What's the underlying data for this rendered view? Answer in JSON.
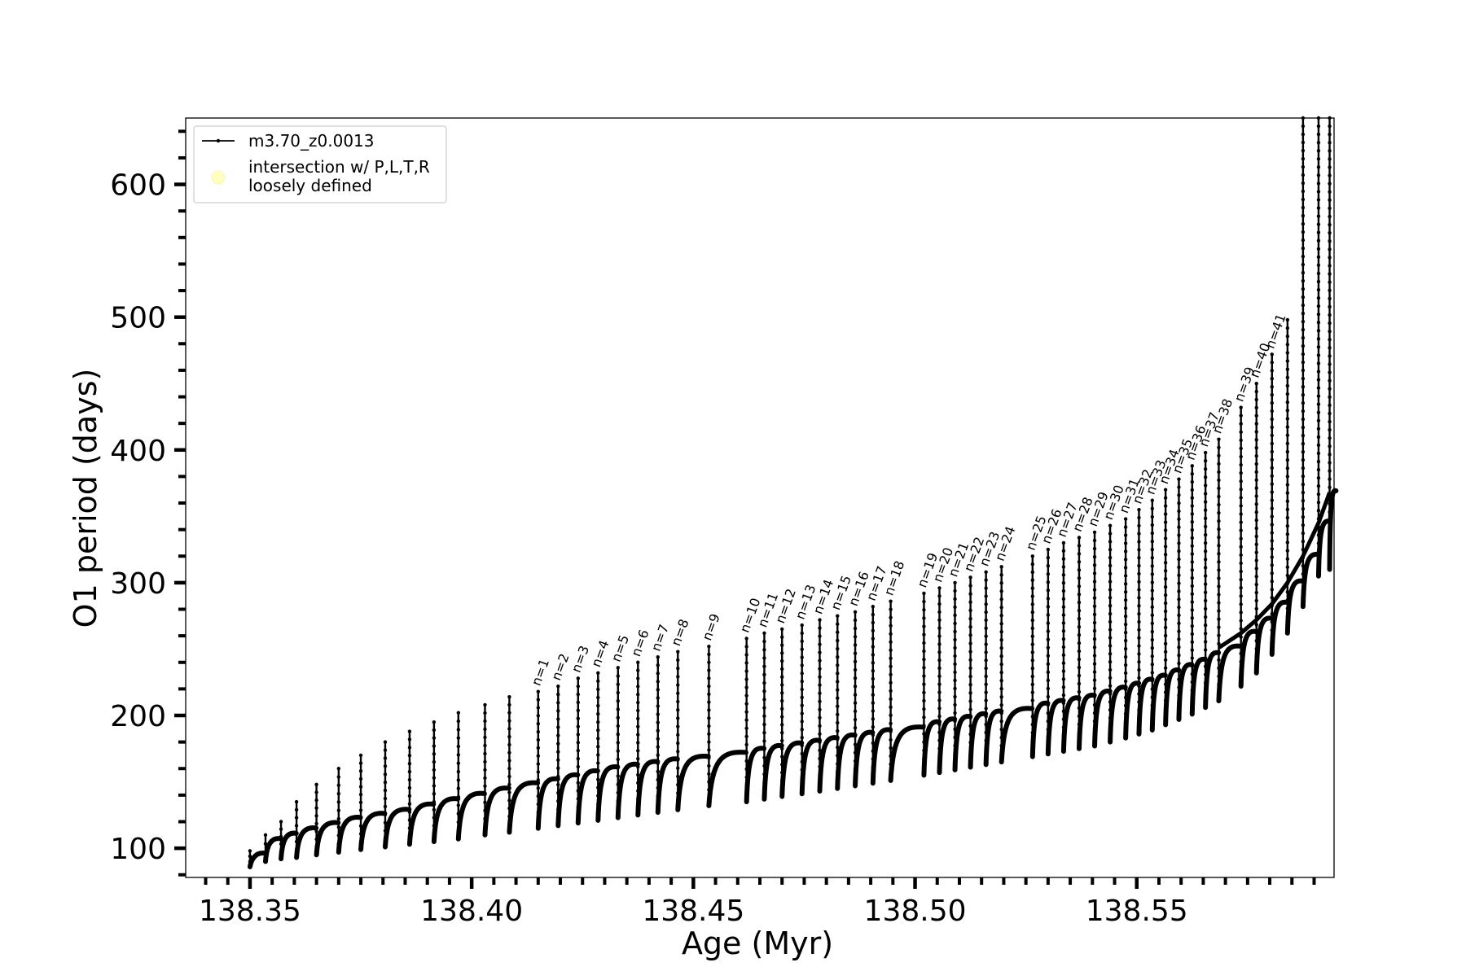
{
  "chart_data": {
    "type": "line",
    "title": "",
    "xlabel": "Age (Myr)",
    "ylabel": "O1 period (days)",
    "xlim": [
      138.3355,
      138.5945
    ],
    "ylim": [
      78,
      650
    ],
    "x_ticks": [
      138.35,
      138.4,
      138.45,
      138.5,
      138.55
    ],
    "x_tick_labels": [
      "138.35",
      "138.40",
      "138.45",
      "138.50",
      "138.55"
    ],
    "y_ticks": [
      100,
      200,
      300,
      400,
      500,
      600
    ],
    "y_tick_labels": [
      "100",
      "200",
      "300",
      "400",
      "500",
      "600"
    ],
    "x_minor_step": 0.005,
    "y_minor_step": 20,
    "grid": false,
    "legend": {
      "placement": "top-left",
      "entries": [
        {
          "label": "m3.70_z0.0013",
          "marker": "line-with-dots",
          "color": "#000000"
        },
        {
          "label": "intersection w/ P,L,T,R\nloosely defined",
          "marker": "circle",
          "color": "#ffffc0"
        }
      ]
    },
    "series": [
      {
        "name": "m3.70_z0.0013",
        "color": "#000000",
        "description": "loops (blue loops / pulses), each with a rise in base period and a sharp spike",
        "loops": [
          {
            "x": 138.35,
            "base": 95,
            "min": 86,
            "peak": 98
          },
          {
            "x": 138.3535,
            "base": 106,
            "min": 90,
            "peak": 110
          },
          {
            "x": 138.357,
            "base": 110,
            "min": 92,
            "peak": 120
          },
          {
            "x": 138.3605,
            "base": 114,
            "min": 93,
            "peak": 135
          },
          {
            "x": 138.365,
            "base": 118,
            "min": 95,
            "peak": 148
          },
          {
            "x": 138.37,
            "base": 122,
            "min": 97,
            "peak": 160
          },
          {
            "x": 138.375,
            "base": 125,
            "min": 99,
            "peak": 170
          },
          {
            "x": 138.3805,
            "base": 128,
            "min": 101,
            "peak": 180
          },
          {
            "x": 138.386,
            "base": 132,
            "min": 103,
            "peak": 188
          },
          {
            "x": 138.3915,
            "base": 136,
            "min": 105,
            "peak": 195
          },
          {
            "x": 138.397,
            "base": 140,
            "min": 107,
            "peak": 202
          },
          {
            "x": 138.403,
            "base": 144,
            "min": 110,
            "peak": 208
          },
          {
            "x": 138.4085,
            "base": 148,
            "min": 112,
            "peak": 214
          },
          {
            "x": 138.415,
            "base": 151,
            "min": 115,
            "peak": 218,
            "label": "n=1"
          },
          {
            "x": 138.4195,
            "base": 154,
            "min": 117,
            "peak": 222,
            "label": "n=2"
          },
          {
            "x": 138.424,
            "base": 157,
            "min": 119,
            "peak": 228,
            "label": "n=3"
          },
          {
            "x": 138.4285,
            "base": 160,
            "min": 121,
            "peak": 232,
            "label": "n=4"
          },
          {
            "x": 138.433,
            "base": 162,
            "min": 123,
            "peak": 236,
            "label": "n=5"
          },
          {
            "x": 138.4375,
            "base": 164,
            "min": 125,
            "peak": 240,
            "label": "n=6"
          },
          {
            "x": 138.442,
            "base": 166,
            "min": 127,
            "peak": 244,
            "label": "n=7"
          },
          {
            "x": 138.4465,
            "base": 168,
            "min": 129,
            "peak": 248,
            "label": "n=8"
          },
          {
            "x": 138.4535,
            "base": 171,
            "min": 132,
            "peak": 252,
            "label": "n=9"
          },
          {
            "x": 138.462,
            "base": 174,
            "min": 135,
            "peak": 258,
            "label": "n=10"
          },
          {
            "x": 138.466,
            "base": 176,
            "min": 137,
            "peak": 262,
            "label": "n=11"
          },
          {
            "x": 138.47,
            "base": 178,
            "min": 139,
            "peak": 265,
            "label": "n=12"
          },
          {
            "x": 138.4745,
            "base": 180,
            "min": 141,
            "peak": 268,
            "label": "n=13"
          },
          {
            "x": 138.4785,
            "base": 182,
            "min": 143,
            "peak": 272,
            "label": "n=14"
          },
          {
            "x": 138.4825,
            "base": 184,
            "min": 145,
            "peak": 275,
            "label": "n=15"
          },
          {
            "x": 138.4865,
            "base": 186,
            "min": 147,
            "peak": 278,
            "label": "n=16"
          },
          {
            "x": 138.4905,
            "base": 188,
            "min": 149,
            "peak": 282,
            "label": "n=17"
          },
          {
            "x": 138.4945,
            "base": 190,
            "min": 151,
            "peak": 286,
            "label": "n=18"
          },
          {
            "x": 138.502,
            "base": 194,
            "min": 155,
            "peak": 292,
            "label": "n=19"
          },
          {
            "x": 138.5055,
            "base": 196,
            "min": 157,
            "peak": 296,
            "label": "n=20"
          },
          {
            "x": 138.509,
            "base": 198,
            "min": 159,
            "peak": 300,
            "label": "n=21"
          },
          {
            "x": 138.5125,
            "base": 200,
            "min": 161,
            "peak": 304,
            "label": "n=22"
          },
          {
            "x": 138.516,
            "base": 202,
            "min": 163,
            "peak": 308,
            "label": "n=23"
          },
          {
            "x": 138.5195,
            "base": 204,
            "min": 165,
            "peak": 312,
            "label": "n=24"
          },
          {
            "x": 138.5265,
            "base": 208,
            "min": 169,
            "peak": 320,
            "label": "n=25"
          },
          {
            "x": 138.53,
            "base": 210,
            "min": 171,
            "peak": 325,
            "label": "n=26"
          },
          {
            "x": 138.5335,
            "base": 212,
            "min": 173,
            "peak": 330,
            "label": "n=27"
          },
          {
            "x": 138.537,
            "base": 214,
            "min": 175,
            "peak": 334,
            "label": "n=28"
          },
          {
            "x": 138.5405,
            "base": 217,
            "min": 177,
            "peak": 338,
            "label": "n=29"
          },
          {
            "x": 138.544,
            "base": 220,
            "min": 180,
            "peak": 343,
            "label": "n=30"
          },
          {
            "x": 138.5475,
            "base": 223,
            "min": 183,
            "peak": 348,
            "label": "n=31"
          },
          {
            "x": 138.5505,
            "base": 226,
            "min": 186,
            "peak": 355,
            "label": "n=32"
          },
          {
            "x": 138.5535,
            "base": 229,
            "min": 189,
            "peak": 362,
            "label": "n=33"
          },
          {
            "x": 138.5565,
            "base": 233,
            "min": 193,
            "peak": 370,
            "label": "n=34"
          },
          {
            "x": 138.5595,
            "base": 237,
            "min": 197,
            "peak": 378,
            "label": "n=35"
          },
          {
            "x": 138.5625,
            "base": 241,
            "min": 201,
            "peak": 388,
            "label": "n=36"
          },
          {
            "x": 138.5655,
            "base": 246,
            "min": 206,
            "peak": 398,
            "label": "n=37"
          },
          {
            "x": 138.5685,
            "base": 251,
            "min": 211,
            "peak": 408,
            "label": "n=38"
          },
          {
            "x": 138.5735,
            "base": 262,
            "min": 222,
            "peak": 432,
            "label": "n=39"
          },
          {
            "x": 138.577,
            "base": 272,
            "min": 232,
            "peak": 450,
            "label": "n=40"
          },
          {
            "x": 138.5805,
            "base": 284,
            "min": 246,
            "peak": 472,
            "label": "n=41"
          },
          {
            "x": 138.584,
            "base": 300,
            "min": 262,
            "peak": 498
          },
          {
            "x": 138.5875,
            "base": 320,
            "min": 282,
            "peak": 650
          },
          {
            "x": 138.591,
            "base": 345,
            "min": 305,
            "peak": 650
          },
          {
            "x": 138.5935,
            "base": 368,
            "min": 310,
            "peak": 650
          }
        ]
      }
    ]
  }
}
